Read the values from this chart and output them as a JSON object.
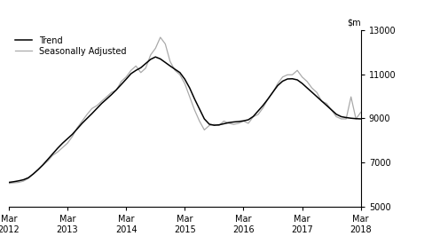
{
  "ylim": [
    5000,
    13000
  ],
  "yticks": [
    5000,
    7000,
    9000,
    11000,
    13000
  ],
  "xtick_labels": [
    "Mar\n2012",
    "Mar\n2013",
    "Mar\n2014",
    "Mar\n2015",
    "Mar\n2016",
    "Mar\n2017",
    "Mar\n2018"
  ],
  "trend_color": "#000000",
  "seasonal_color": "#aaaaaa",
  "legend_entries": [
    "Trend",
    "Seasonally Adjusted"
  ],
  "trend_x": [
    0.0,
    0.083,
    0.167,
    0.25,
    0.333,
    0.417,
    0.5,
    0.583,
    0.667,
    0.75,
    0.833,
    0.917,
    1.0,
    1.083,
    1.167,
    1.25,
    1.333,
    1.417,
    1.5,
    1.583,
    1.667,
    1.75,
    1.833,
    1.917,
    2.0,
    2.083,
    2.167,
    2.25,
    2.333,
    2.417,
    2.5,
    2.583,
    2.667,
    2.75,
    2.833,
    2.917,
    3.0,
    3.083,
    3.167,
    3.25,
    3.333,
    3.417,
    3.5,
    3.583,
    3.667,
    3.75,
    3.833,
    3.917,
    4.0,
    4.083,
    4.167,
    4.25,
    4.333,
    4.417,
    4.5,
    4.583,
    4.667,
    4.75,
    4.833,
    4.917,
    5.0,
    5.083,
    5.167,
    5.25,
    5.333,
    5.417,
    5.5,
    5.583,
    5.667,
    5.75,
    5.833,
    5.917,
    6.0
  ],
  "trend_y": [
    6100,
    6130,
    6170,
    6220,
    6310,
    6480,
    6680,
    6900,
    7150,
    7400,
    7650,
    7880,
    8080,
    8280,
    8530,
    8780,
    9000,
    9220,
    9450,
    9680,
    9880,
    10080,
    10300,
    10540,
    10780,
    11030,
    11180,
    11300,
    11490,
    11680,
    11790,
    11700,
    11540,
    11380,
    11230,
    11080,
    10780,
    10380,
    9880,
    9430,
    8980,
    8740,
    8690,
    8710,
    8760,
    8810,
    8840,
    8860,
    8890,
    8940,
    9090,
    9340,
    9590,
    9880,
    10190,
    10490,
    10690,
    10790,
    10800,
    10750,
    10590,
    10390,
    10190,
    9990,
    9790,
    9590,
    9390,
    9190,
    9080,
    9040,
    9010,
    8990,
    8980
  ],
  "seasonal_x": [
    0.0,
    0.083,
    0.167,
    0.25,
    0.333,
    0.417,
    0.5,
    0.583,
    0.667,
    0.75,
    0.833,
    0.917,
    1.0,
    1.083,
    1.167,
    1.25,
    1.333,
    1.417,
    1.5,
    1.583,
    1.667,
    1.75,
    1.833,
    1.917,
    2.0,
    2.083,
    2.167,
    2.25,
    2.333,
    2.417,
    2.5,
    2.583,
    2.667,
    2.75,
    2.833,
    2.917,
    3.0,
    3.083,
    3.167,
    3.25,
    3.333,
    3.417,
    3.5,
    3.583,
    3.667,
    3.75,
    3.833,
    3.917,
    4.0,
    4.083,
    4.167,
    4.25,
    4.333,
    4.417,
    4.5,
    4.583,
    4.667,
    4.75,
    4.833,
    4.917,
    5.0,
    5.083,
    5.167,
    5.25,
    5.333,
    5.417,
    5.5,
    5.583,
    5.667,
    5.75,
    5.833,
    5.917,
    6.0
  ],
  "seasonal_y": [
    6050,
    6080,
    6100,
    6160,
    6280,
    6500,
    6680,
    6880,
    7080,
    7330,
    7480,
    7680,
    7880,
    8180,
    8580,
    8880,
    9180,
    9450,
    9580,
    9780,
    9980,
    10180,
    10280,
    10680,
    10880,
    11180,
    11380,
    11080,
    11280,
    11880,
    12180,
    12680,
    12380,
    11580,
    11180,
    10980,
    10580,
    9980,
    9380,
    8880,
    8480,
    8680,
    8730,
    8680,
    8880,
    8780,
    8730,
    8780,
    8880,
    8780,
    9080,
    9180,
    9480,
    9880,
    10180,
    10580,
    10880,
    10980,
    10980,
    11180,
    10880,
    10680,
    10380,
    10180,
    9780,
    9680,
    9380,
    9080,
    8980,
    8980,
    9980,
    8980,
    9280
  ]
}
